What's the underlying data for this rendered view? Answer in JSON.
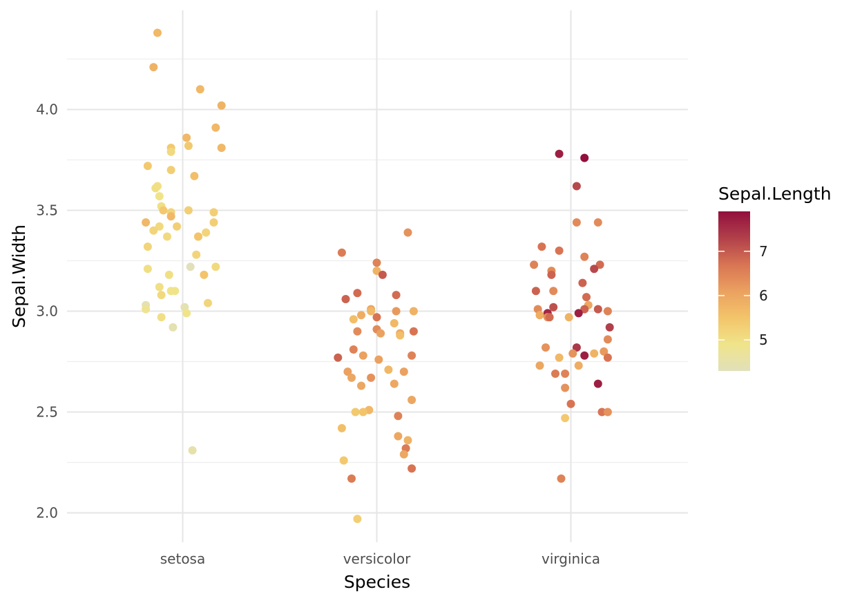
{
  "chart_data": {
    "type": "scatter",
    "xlabel": "Species",
    "ylabel": "Sepal.Width",
    "categories": [
      "setosa",
      "versicolor",
      "virginica"
    ],
    "ylim": [
      1.86,
      4.45
    ],
    "yticks": [
      2.0,
      2.5,
      3.0,
      3.5,
      4.0
    ],
    "yticks_labels": [
      "2.0",
      "2.5",
      "3.0",
      "3.5",
      "4.0"
    ],
    "grid": true,
    "jitter": true,
    "color_legend": {
      "title": "Sepal.Length",
      "min": 4.3,
      "max": 7.9,
      "ticks": [
        5,
        6,
        7
      ],
      "tick_labels": [
        "5",
        "6",
        "7"
      ],
      "colors": [
        "#e1e0ba",
        "#f0e48a",
        "#f3c46a",
        "#eba160",
        "#d87453",
        "#b1404a",
        "#920f3e"
      ],
      "placement": "right"
    },
    "points": [
      {
        "species": "setosa",
        "jitter": -0.13,
        "y": 4.38,
        "color_value": 5.7
      },
      {
        "species": "setosa",
        "jitter": -0.15,
        "y": 4.21,
        "color_value": 5.8
      },
      {
        "species": "setosa",
        "jitter": 0.09,
        "y": 4.1,
        "color_value": 5.7
      },
      {
        "species": "setosa",
        "jitter": 0.2,
        "y": 4.02,
        "color_value": 5.8
      },
      {
        "species": "setosa",
        "jitter": 0.17,
        "y": 3.91,
        "color_value": 5.7
      },
      {
        "species": "setosa",
        "jitter": 0.02,
        "y": 3.86,
        "color_value": 5.7
      },
      {
        "species": "setosa",
        "jitter": 0.03,
        "y": 3.82,
        "color_value": 5.4
      },
      {
        "species": "setosa",
        "jitter": -0.06,
        "y": 3.81,
        "color_value": 5.4
      },
      {
        "species": "setosa",
        "jitter": 0.2,
        "y": 3.81,
        "color_value": 5.7
      },
      {
        "species": "setosa",
        "jitter": -0.06,
        "y": 3.79,
        "color_value": 5.1
      },
      {
        "species": "setosa",
        "jitter": -0.18,
        "y": 3.72,
        "color_value": 5.4
      },
      {
        "species": "setosa",
        "jitter": -0.06,
        "y": 3.7,
        "color_value": 5.3
      },
      {
        "species": "setosa",
        "jitter": 0.06,
        "y": 3.67,
        "color_value": 5.6
      },
      {
        "species": "setosa",
        "jitter": -0.13,
        "y": 3.62,
        "color_value": 5.0
      },
      {
        "species": "setosa",
        "jitter": -0.14,
        "y": 3.61,
        "color_value": 5.0
      },
      {
        "species": "setosa",
        "jitter": -0.12,
        "y": 3.57,
        "color_value": 4.9
      },
      {
        "species": "setosa",
        "jitter": -0.11,
        "y": 3.52,
        "color_value": 5.0
      },
      {
        "species": "setosa",
        "jitter": -0.1,
        "y": 3.5,
        "color_value": 5.4
      },
      {
        "species": "setosa",
        "jitter": 0.03,
        "y": 3.5,
        "color_value": 5.3
      },
      {
        "species": "setosa",
        "jitter": 0.16,
        "y": 3.49,
        "color_value": 5.3
      },
      {
        "species": "setosa",
        "jitter": -0.06,
        "y": 3.49,
        "color_value": 5.2
      },
      {
        "species": "setosa",
        "jitter": -0.06,
        "y": 3.47,
        "color_value": 5.7
      },
      {
        "species": "setosa",
        "jitter": -0.19,
        "y": 3.44,
        "color_value": 5.7
      },
      {
        "species": "setosa",
        "jitter": 0.16,
        "y": 3.44,
        "color_value": 5.3
      },
      {
        "species": "setosa",
        "jitter": -0.12,
        "y": 3.42,
        "color_value": 5.1
      },
      {
        "species": "setosa",
        "jitter": -0.03,
        "y": 3.42,
        "color_value": 5.3
      },
      {
        "species": "setosa",
        "jitter": -0.15,
        "y": 3.4,
        "color_value": 5.2
      },
      {
        "species": "setosa",
        "jitter": 0.12,
        "y": 3.39,
        "color_value": 5.2
      },
      {
        "species": "setosa",
        "jitter": 0.08,
        "y": 3.37,
        "color_value": 5.4
      },
      {
        "species": "setosa",
        "jitter": 0.08,
        "y": 3.37,
        "color_value": 5.5
      },
      {
        "species": "setosa",
        "jitter": -0.08,
        "y": 3.37,
        "color_value": 5.1
      },
      {
        "species": "setosa",
        "jitter": -0.18,
        "y": 3.32,
        "color_value": 5.2
      },
      {
        "species": "setosa",
        "jitter": 0.07,
        "y": 3.28,
        "color_value": 5.2
      },
      {
        "species": "setosa",
        "jitter": 0.04,
        "y": 3.22,
        "color_value": 4.3
      },
      {
        "species": "setosa",
        "jitter": 0.17,
        "y": 3.22,
        "color_value": 5.1
      },
      {
        "species": "setosa",
        "jitter": -0.18,
        "y": 3.21,
        "color_value": 5.0
      },
      {
        "species": "setosa",
        "jitter": 0.11,
        "y": 3.18,
        "color_value": 5.5
      },
      {
        "species": "setosa",
        "jitter": -0.07,
        "y": 3.18,
        "color_value": 5.0
      },
      {
        "species": "setosa",
        "jitter": -0.12,
        "y": 3.12,
        "color_value": 5.0
      },
      {
        "species": "setosa",
        "jitter": -0.06,
        "y": 3.1,
        "color_value": 4.9
      },
      {
        "species": "setosa",
        "jitter": -0.04,
        "y": 3.1,
        "color_value": 4.9
      },
      {
        "species": "setosa",
        "jitter": -0.11,
        "y": 3.08,
        "color_value": 5.1
      },
      {
        "species": "setosa",
        "jitter": 0.13,
        "y": 3.04,
        "color_value": 5.2
      },
      {
        "species": "setosa",
        "jitter": -0.19,
        "y": 3.03,
        "color_value": 4.4
      },
      {
        "species": "setosa",
        "jitter": 0.01,
        "y": 3.02,
        "color_value": 4.4
      },
      {
        "species": "setosa",
        "jitter": -0.19,
        "y": 3.01,
        "color_value": 4.8
      },
      {
        "species": "setosa",
        "jitter": 0.02,
        "y": 2.99,
        "color_value": 4.9
      },
      {
        "species": "setosa",
        "jitter": -0.11,
        "y": 2.97,
        "color_value": 5.0
      },
      {
        "species": "setosa",
        "jitter": -0.05,
        "y": 2.92,
        "color_value": 4.4
      },
      {
        "species": "setosa",
        "jitter": 0.05,
        "y": 2.31,
        "color_value": 4.5
      },
      {
        "species": "versicolor",
        "jitter": 0.16,
        "y": 3.39,
        "color_value": 6.3
      },
      {
        "species": "versicolor",
        "jitter": -0.18,
        "y": 3.29,
        "color_value": 6.6
      },
      {
        "species": "versicolor",
        "jitter": 0.0,
        "y": 3.24,
        "color_value": 6.5
      },
      {
        "species": "versicolor",
        "jitter": 0.0,
        "y": 3.2,
        "color_value": 5.8
      },
      {
        "species": "versicolor",
        "jitter": 0.03,
        "y": 3.18,
        "color_value": 7.0
      },
      {
        "species": "versicolor",
        "jitter": -0.1,
        "y": 3.09,
        "color_value": 6.8
      },
      {
        "species": "versicolor",
        "jitter": 0.1,
        "y": 3.08,
        "color_value": 6.8
      },
      {
        "species": "versicolor",
        "jitter": -0.16,
        "y": 3.06,
        "color_value": 6.9
      },
      {
        "species": "versicolor",
        "jitter": -0.03,
        "y": 3.01,
        "color_value": 6.0
      },
      {
        "species": "versicolor",
        "jitter": 0.1,
        "y": 3.0,
        "color_value": 6.2
      },
      {
        "species": "versicolor",
        "jitter": 0.19,
        "y": 3.0,
        "color_value": 5.8
      },
      {
        "species": "versicolor",
        "jitter": -0.03,
        "y": 3.0,
        "color_value": 5.7
      },
      {
        "species": "versicolor",
        "jitter": -0.08,
        "y": 2.98,
        "color_value": 5.9
      },
      {
        "species": "versicolor",
        "jitter": -0.12,
        "y": 2.96,
        "color_value": 5.6
      },
      {
        "species": "versicolor",
        "jitter": 0.0,
        "y": 2.97,
        "color_value": 6.7
      },
      {
        "species": "versicolor",
        "jitter": 0.09,
        "y": 2.94,
        "color_value": 5.7
      },
      {
        "species": "versicolor",
        "jitter": -0.1,
        "y": 2.9,
        "color_value": 6.4
      },
      {
        "species": "versicolor",
        "jitter": 0.0,
        "y": 2.91,
        "color_value": 6.4
      },
      {
        "species": "versicolor",
        "jitter": 0.19,
        "y": 2.9,
        "color_value": 6.7
      },
      {
        "species": "versicolor",
        "jitter": 0.02,
        "y": 2.89,
        "color_value": 6.1
      },
      {
        "species": "versicolor",
        "jitter": 0.12,
        "y": 2.89,
        "color_value": 6.0
      },
      {
        "species": "versicolor",
        "jitter": 0.12,
        "y": 2.88,
        "color_value": 5.6
      },
      {
        "species": "versicolor",
        "jitter": -0.12,
        "y": 2.81,
        "color_value": 6.5
      },
      {
        "species": "versicolor",
        "jitter": -0.07,
        "y": 2.78,
        "color_value": 6.1
      },
      {
        "species": "versicolor",
        "jitter": -0.2,
        "y": 2.77,
        "color_value": 6.9
      },
      {
        "species": "versicolor",
        "jitter": 0.18,
        "y": 2.78,
        "color_value": 6.5
      },
      {
        "species": "versicolor",
        "jitter": 0.01,
        "y": 2.76,
        "color_value": 6.1
      },
      {
        "species": "versicolor",
        "jitter": 0.06,
        "y": 2.71,
        "color_value": 5.7
      },
      {
        "species": "versicolor",
        "jitter": -0.15,
        "y": 2.7,
        "color_value": 6.1
      },
      {
        "species": "versicolor",
        "jitter": 0.14,
        "y": 2.7,
        "color_value": 6.1
      },
      {
        "species": "versicolor",
        "jitter": -0.13,
        "y": 2.67,
        "color_value": 6.0
      },
      {
        "species": "versicolor",
        "jitter": -0.03,
        "y": 2.67,
        "color_value": 6.3
      },
      {
        "species": "versicolor",
        "jitter": 0.09,
        "y": 2.64,
        "color_value": 6.0
      },
      {
        "species": "versicolor",
        "jitter": -0.08,
        "y": 2.63,
        "color_value": 6.0
      },
      {
        "species": "versicolor",
        "jitter": 0.18,
        "y": 2.56,
        "color_value": 6.0
      },
      {
        "species": "versicolor",
        "jitter": -0.04,
        "y": 2.51,
        "color_value": 5.7
      },
      {
        "species": "versicolor",
        "jitter": -0.07,
        "y": 2.5,
        "color_value": 5.5
      },
      {
        "species": "versicolor",
        "jitter": -0.11,
        "y": 2.5,
        "color_value": 5.4
      },
      {
        "species": "versicolor",
        "jitter": 0.11,
        "y": 2.48,
        "color_value": 6.5
      },
      {
        "species": "versicolor",
        "jitter": -0.18,
        "y": 2.42,
        "color_value": 5.6
      },
      {
        "species": "versicolor",
        "jitter": 0.11,
        "y": 2.38,
        "color_value": 6.0
      },
      {
        "species": "versicolor",
        "jitter": 0.16,
        "y": 2.36,
        "color_value": 5.8
      },
      {
        "species": "versicolor",
        "jitter": 0.15,
        "y": 2.32,
        "color_value": 6.6
      },
      {
        "species": "versicolor",
        "jitter": 0.14,
        "y": 2.29,
        "color_value": 6.0
      },
      {
        "species": "versicolor",
        "jitter": -0.17,
        "y": 2.26,
        "color_value": 5.4
      },
      {
        "species": "versicolor",
        "jitter": 0.18,
        "y": 2.22,
        "color_value": 6.7
      },
      {
        "species": "versicolor",
        "jitter": -0.13,
        "y": 2.17,
        "color_value": 6.6
      },
      {
        "species": "versicolor",
        "jitter": -0.1,
        "y": 1.97,
        "color_value": 5.3
      },
      {
        "species": "virginica",
        "jitter": -0.06,
        "y": 3.78,
        "color_value": 7.7
      },
      {
        "species": "virginica",
        "jitter": 0.07,
        "y": 3.76,
        "color_value": 7.9
      },
      {
        "species": "virginica",
        "jitter": 0.03,
        "y": 3.62,
        "color_value": 7.2
      },
      {
        "species": "virginica",
        "jitter": 0.03,
        "y": 3.44,
        "color_value": 6.4
      },
      {
        "species": "virginica",
        "jitter": 0.14,
        "y": 3.44,
        "color_value": 6.4
      },
      {
        "species": "virginica",
        "jitter": -0.15,
        "y": 3.32,
        "color_value": 6.7
      },
      {
        "species": "virginica",
        "jitter": -0.06,
        "y": 3.3,
        "color_value": 6.7
      },
      {
        "species": "virginica",
        "jitter": 0.07,
        "y": 3.27,
        "color_value": 6.5
      },
      {
        "species": "virginica",
        "jitter": -0.19,
        "y": 3.23,
        "color_value": 6.5
      },
      {
        "species": "virginica",
        "jitter": 0.15,
        "y": 3.23,
        "color_value": 6.8
      },
      {
        "species": "virginica",
        "jitter": 0.12,
        "y": 3.21,
        "color_value": 7.2
      },
      {
        "species": "virginica",
        "jitter": -0.1,
        "y": 3.2,
        "color_value": 6.4
      },
      {
        "species": "virginica",
        "jitter": -0.1,
        "y": 3.18,
        "color_value": 6.9
      },
      {
        "species": "virginica",
        "jitter": 0.06,
        "y": 3.14,
        "color_value": 6.9
      },
      {
        "species": "virginica",
        "jitter": -0.18,
        "y": 3.1,
        "color_value": 6.9
      },
      {
        "species": "virginica",
        "jitter": -0.09,
        "y": 3.1,
        "color_value": 6.4
      },
      {
        "species": "virginica",
        "jitter": 0.08,
        "y": 3.07,
        "color_value": 6.8
      },
      {
        "species": "virginica",
        "jitter": 0.09,
        "y": 3.03,
        "color_value": 6.0
      },
      {
        "species": "virginica",
        "jitter": -0.09,
        "y": 3.02,
        "color_value": 7.1
      },
      {
        "species": "virginica",
        "jitter": 0.07,
        "y": 3.01,
        "color_value": 6.9
      },
      {
        "species": "virginica",
        "jitter": 0.14,
        "y": 3.01,
        "color_value": 7.0
      },
      {
        "species": "virginica",
        "jitter": 0.19,
        "y": 3.0,
        "color_value": 6.5
      },
      {
        "species": "virginica",
        "jitter": -0.17,
        "y": 3.01,
        "color_value": 6.4
      },
      {
        "species": "virginica",
        "jitter": -0.12,
        "y": 2.99,
        "color_value": 7.6
      },
      {
        "species": "virginica",
        "jitter": 0.04,
        "y": 2.99,
        "color_value": 7.7
      },
      {
        "species": "virginica",
        "jitter": -0.16,
        "y": 2.98,
        "color_value": 5.9
      },
      {
        "species": "virginica",
        "jitter": -0.12,
        "y": 2.97,
        "color_value": 6.3
      },
      {
        "species": "virginica",
        "jitter": -0.11,
        "y": 2.97,
        "color_value": 6.8
      },
      {
        "species": "virginica",
        "jitter": -0.01,
        "y": 2.97,
        "color_value": 5.8
      },
      {
        "species": "virginica",
        "jitter": 0.2,
        "y": 2.92,
        "color_value": 7.3
      },
      {
        "species": "virginica",
        "jitter": 0.19,
        "y": 2.86,
        "color_value": 6.4
      },
      {
        "species": "virginica",
        "jitter": -0.13,
        "y": 2.82,
        "color_value": 6.3
      },
      {
        "species": "virginica",
        "jitter": 0.03,
        "y": 2.82,
        "color_value": 7.4
      },
      {
        "species": "virginica",
        "jitter": 0.17,
        "y": 2.8,
        "color_value": 6.2
      },
      {
        "species": "virginica",
        "jitter": 0.12,
        "y": 2.79,
        "color_value": 5.8
      },
      {
        "species": "virginica",
        "jitter": 0.01,
        "y": 2.79,
        "color_value": 6.3
      },
      {
        "species": "virginica",
        "jitter": 0.07,
        "y": 2.78,
        "color_value": 7.7
      },
      {
        "species": "virginica",
        "jitter": -0.06,
        "y": 2.77,
        "color_value": 5.7
      },
      {
        "species": "virginica",
        "jitter": 0.19,
        "y": 2.77,
        "color_value": 6.7
      },
      {
        "species": "virginica",
        "jitter": -0.16,
        "y": 2.73,
        "color_value": 6.0
      },
      {
        "species": "virginica",
        "jitter": 0.04,
        "y": 2.73,
        "color_value": 5.9
      },
      {
        "species": "virginica",
        "jitter": -0.08,
        "y": 2.69,
        "color_value": 6.6
      },
      {
        "species": "virginica",
        "jitter": -0.03,
        "y": 2.69,
        "color_value": 6.5
      },
      {
        "species": "virginica",
        "jitter": 0.14,
        "y": 2.64,
        "color_value": 7.7
      },
      {
        "species": "virginica",
        "jitter": -0.03,
        "y": 2.62,
        "color_value": 6.3
      },
      {
        "species": "virginica",
        "jitter": 0.0,
        "y": 2.54,
        "color_value": 6.7
      },
      {
        "species": "virginica",
        "jitter": 0.16,
        "y": 2.5,
        "color_value": 6.7
      },
      {
        "species": "virginica",
        "jitter": 0.19,
        "y": 2.5,
        "color_value": 6.3
      },
      {
        "species": "virginica",
        "jitter": -0.03,
        "y": 2.47,
        "color_value": 5.4
      },
      {
        "species": "virginica",
        "jitter": -0.05,
        "y": 2.17,
        "color_value": 6.5
      }
    ]
  }
}
